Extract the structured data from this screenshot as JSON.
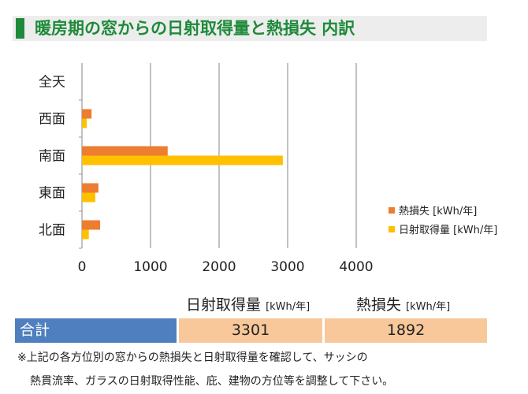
{
  "title": "暖房期の窓からの日射取得量と熱損失 内訳",
  "chart_data": {
    "type": "bar",
    "orientation": "horizontal",
    "categories": [
      "全天",
      "西面",
      "南面",
      "東面",
      "北面"
    ],
    "series": [
      {
        "name": "熱損失 [kWh/年]",
        "color": "#ed7d31",
        "values": [
          0,
          140,
          1250,
          240,
          265
        ]
      },
      {
        "name": "日射取得量 [kWh/年]",
        "color": "#ffc000",
        "values": [
          0,
          70,
          2930,
          195,
          100
        ]
      }
    ],
    "xlim": [
      0,
      4000
    ],
    "xticks": [
      "0",
      "1000",
      "2000",
      "3000",
      "4000"
    ],
    "grid": true,
    "legend": "right"
  },
  "table": {
    "headers": [
      {
        "main": "日射取得量",
        "unit": "[kWh/年]"
      },
      {
        "main": "熱損失",
        "unit": "[kWh/年]"
      }
    ],
    "row_label": "合計",
    "values": [
      "3301",
      "1892"
    ]
  },
  "notes": [
    "※上記の各方位別の窓からの熱損失と日射取得量を確認して、サッシの",
    "熱貫流率、ガラスの日射取得性能、庇、建物の方位等を調整して下さい。"
  ]
}
